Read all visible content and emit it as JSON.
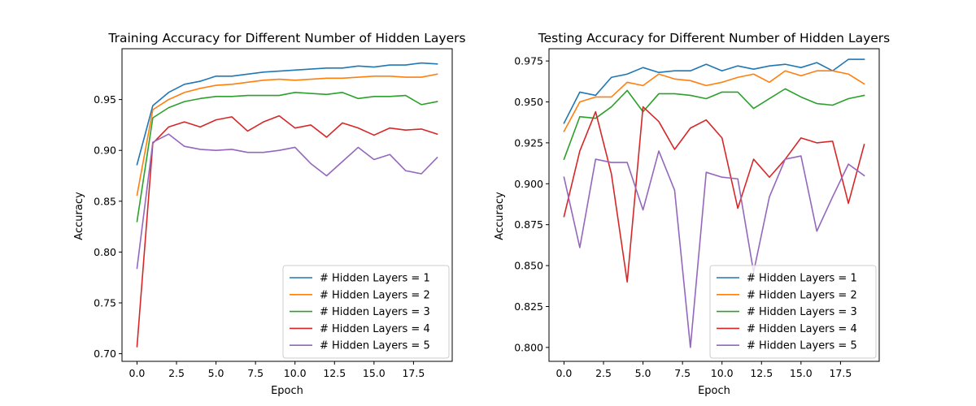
{
  "chart_data": [
    {
      "type": "line",
      "title": "Training Accuracy for Different Number of Hidden Layers",
      "xlabel": "Epoch",
      "ylabel": "Accuracy",
      "xlim": [
        -0.95,
        19.95
      ],
      "ylim": [
        0.6925,
        1.0
      ],
      "xticks": [
        0,
        2.5,
        5,
        7.5,
        10,
        12.5,
        15,
        17.5
      ],
      "xtick_labels": [
        "0.0",
        "2.5",
        "5.0",
        "7.5",
        "10.0",
        "12.5",
        "15.0",
        "17.5"
      ],
      "yticks": [
        0.7,
        0.75,
        0.8,
        0.85,
        0.9,
        0.95
      ],
      "ytick_labels": [
        "0.70",
        "0.75",
        "0.80",
        "0.85",
        "0.90",
        "0.95"
      ],
      "grid": false,
      "legend_position": "lower-right",
      "x": [
        0,
        1,
        2,
        3,
        4,
        5,
        6,
        7,
        8,
        9,
        10,
        11,
        12,
        13,
        14,
        15,
        16,
        17,
        18,
        19
      ],
      "series": [
        {
          "name": "# Hidden Layers = 1",
          "color": "#1f77b4",
          "values": [
            0.886,
            0.944,
            0.957,
            0.965,
            0.968,
            0.973,
            0.973,
            0.975,
            0.977,
            0.978,
            0.979,
            0.98,
            0.981,
            0.981,
            0.983,
            0.982,
            0.984,
            0.984,
            0.986,
            0.985
          ]
        },
        {
          "name": "# Hidden Layers = 2",
          "color": "#ff7f0e",
          "values": [
            0.856,
            0.94,
            0.95,
            0.957,
            0.961,
            0.964,
            0.965,
            0.967,
            0.969,
            0.97,
            0.969,
            0.97,
            0.971,
            0.971,
            0.972,
            0.973,
            0.973,
            0.972,
            0.972,
            0.975
          ]
        },
        {
          "name": "# Hidden Layers = 3",
          "color": "#2ca02c",
          "values": [
            0.83,
            0.932,
            0.942,
            0.948,
            0.951,
            0.953,
            0.953,
            0.954,
            0.954,
            0.954,
            0.957,
            0.956,
            0.955,
            0.957,
            0.951,
            0.953,
            0.953,
            0.954,
            0.945,
            0.948
          ]
        },
        {
          "name": "# Hidden Layers = 4",
          "color": "#d62728",
          "values": [
            0.707,
            0.907,
            0.923,
            0.928,
            0.923,
            0.93,
            0.933,
            0.919,
            0.928,
            0.934,
            0.922,
            0.925,
            0.913,
            0.927,
            0.922,
            0.915,
            0.922,
            0.92,
            0.921,
            0.916
          ]
        },
        {
          "name": "# Hidden Layers = 5",
          "color": "#9467bd",
          "values": [
            0.784,
            0.908,
            0.916,
            0.904,
            0.901,
            0.9,
            0.901,
            0.898,
            0.898,
            0.9,
            0.903,
            0.887,
            0.875,
            0.889,
            0.903,
            0.891,
            0.896,
            0.88,
            0.877,
            0.893
          ]
        }
      ]
    },
    {
      "type": "line",
      "title": "Testing Accuracy for Different Number of Hidden Layers",
      "xlabel": "Epoch",
      "ylabel": "Accuracy",
      "xlim": [
        -0.95,
        19.95
      ],
      "ylim": [
        0.7915,
        0.9825
      ],
      "xticks": [
        0,
        2.5,
        5,
        7.5,
        10,
        12.5,
        15,
        17.5
      ],
      "xtick_labels": [
        "0.0",
        "2.5",
        "5.0",
        "7.5",
        "10.0",
        "12.5",
        "15.0",
        "17.5"
      ],
      "yticks": [
        0.8,
        0.825,
        0.85,
        0.875,
        0.9,
        0.925,
        0.95,
        0.975
      ],
      "ytick_labels": [
        "0.800",
        "0.825",
        "0.850",
        "0.875",
        "0.900",
        "0.925",
        "0.950",
        "0.975"
      ],
      "grid": false,
      "legend_position": "lower-right",
      "x": [
        0,
        1,
        2,
        3,
        4,
        5,
        6,
        7,
        8,
        9,
        10,
        11,
        12,
        13,
        14,
        15,
        16,
        17,
        18,
        19
      ],
      "series": [
        {
          "name": "# Hidden Layers = 1",
          "color": "#1f77b4",
          "values": [
            0.937,
            0.956,
            0.954,
            0.965,
            0.967,
            0.971,
            0.968,
            0.969,
            0.969,
            0.973,
            0.969,
            0.972,
            0.97,
            0.972,
            0.973,
            0.971,
            0.974,
            0.969,
            0.976,
            0.976
          ]
        },
        {
          "name": "# Hidden Layers = 2",
          "color": "#ff7f0e",
          "values": [
            0.932,
            0.95,
            0.953,
            0.953,
            0.962,
            0.96,
            0.967,
            0.964,
            0.963,
            0.96,
            0.962,
            0.965,
            0.967,
            0.962,
            0.969,
            0.966,
            0.969,
            0.969,
            0.967,
            0.961
          ]
        },
        {
          "name": "# Hidden Layers = 3",
          "color": "#2ca02c",
          "values": [
            0.915,
            0.941,
            0.94,
            0.947,
            0.957,
            0.944,
            0.955,
            0.955,
            0.954,
            0.952,
            0.956,
            0.956,
            0.946,
            0.952,
            0.958,
            0.953,
            0.949,
            0.948,
            0.952,
            0.954
          ]
        },
        {
          "name": "# Hidden Layers = 4",
          "color": "#d62728",
          "values": [
            0.88,
            0.92,
            0.944,
            0.906,
            0.84,
            0.947,
            0.938,
            0.921,
            0.934,
            0.939,
            0.928,
            0.885,
            0.915,
            0.904,
            0.915,
            0.928,
            0.925,
            0.926,
            0.888,
            0.924
          ]
        },
        {
          "name": "# Hidden Layers = 5",
          "color": "#9467bd",
          "values": [
            0.904,
            0.861,
            0.915,
            0.913,
            0.913,
            0.884,
            0.92,
            0.896,
            0.8,
            0.907,
            0.904,
            0.903,
            0.846,
            0.892,
            0.915,
            0.917,
            0.871,
            0.892,
            0.912,
            0.905
          ]
        }
      ]
    }
  ]
}
